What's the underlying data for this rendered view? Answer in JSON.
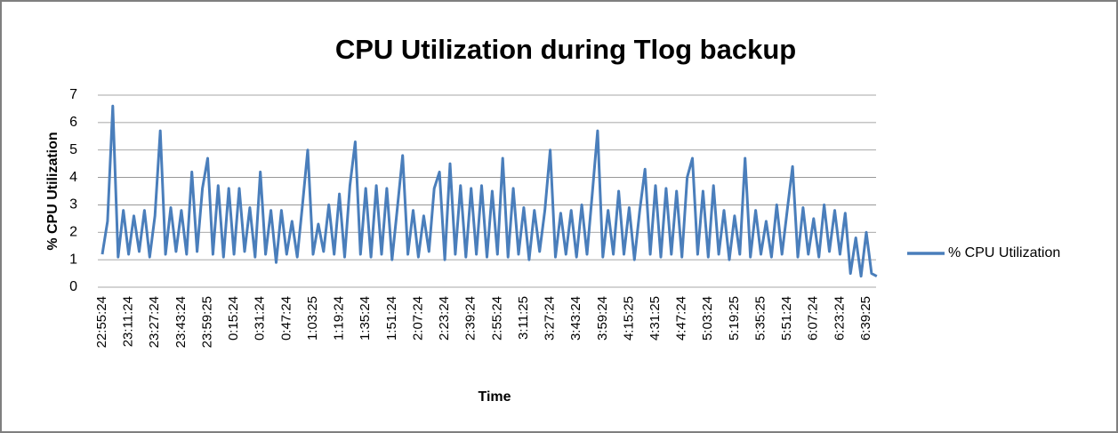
{
  "chart_data": {
    "type": "line",
    "title": "CPU Utilization during Tlog backup",
    "xlabel": "Time",
    "ylabel": "% CPU Utilization",
    "categories": [
      "22:55:24",
      null,
      null,
      null,
      null,
      "23:11:24",
      null,
      null,
      null,
      null,
      "23:27:24",
      null,
      null,
      null,
      null,
      "23:43:24",
      null,
      null,
      null,
      null,
      "23:59:25",
      null,
      null,
      null,
      null,
      "0:15:24",
      null,
      null,
      null,
      null,
      "0:31:24",
      null,
      null,
      null,
      null,
      "0:47:24",
      null,
      null,
      null,
      null,
      "1:03:25",
      null,
      null,
      null,
      null,
      "1:19:24",
      null,
      null,
      null,
      null,
      "1:35:24",
      null,
      null,
      null,
      null,
      "1:51:24",
      null,
      null,
      null,
      null,
      "2:07:24",
      null,
      null,
      null,
      null,
      "2:23:24",
      null,
      null,
      null,
      null,
      "2:39:24",
      null,
      null,
      null,
      null,
      "2:55:24",
      null,
      null,
      null,
      null,
      "3:11:25",
      null,
      null,
      null,
      null,
      "3:27:24",
      null,
      null,
      null,
      null,
      "3:43:24",
      null,
      null,
      null,
      null,
      "3:59:24",
      null,
      null,
      null,
      null,
      "4:15:25",
      null,
      null,
      null,
      null,
      "4:31:25",
      null,
      null,
      null,
      null,
      "4:47:24",
      null,
      null,
      null,
      null,
      "5:03:24",
      null,
      null,
      null,
      null,
      "5:19:25",
      null,
      null,
      null,
      null,
      "5:35:25",
      null,
      null,
      null,
      null,
      "5:51:24",
      null,
      null,
      null,
      null,
      "6:07:24",
      null,
      null,
      null,
      null,
      "6:23:24",
      null,
      null,
      null,
      null,
      "6:39:25",
      null,
      null
    ],
    "series": [
      {
        "name": "% CPU Utilization",
        "color": "#4a7ebb",
        "values": [
          1.2,
          2.4,
          6.6,
          1.1,
          2.8,
          1.2,
          2.6,
          1.3,
          2.8,
          1.1,
          2.6,
          5.7,
          1.2,
          2.9,
          1.3,
          2.8,
          1.2,
          4.2,
          1.3,
          3.6,
          4.7,
          1.2,
          3.7,
          1.1,
          3.6,
          1.2,
          3.6,
          1.3,
          2.9,
          1.1,
          4.2,
          1.2,
          2.8,
          0.9,
          2.8,
          1.2,
          2.4,
          1.1,
          3.0,
          5.0,
          1.2,
          2.3,
          1.3,
          3.0,
          1.2,
          3.4,
          1.1,
          3.7,
          5.3,
          1.2,
          3.6,
          1.1,
          3.7,
          1.2,
          3.6,
          1.0,
          2.9,
          4.8,
          1.2,
          2.8,
          1.1,
          2.6,
          1.3,
          3.6,
          4.2,
          1.0,
          4.5,
          1.2,
          3.7,
          1.1,
          3.6,
          1.2,
          3.7,
          1.1,
          3.5,
          1.2,
          4.7,
          1.1,
          3.6,
          1.2,
          2.9,
          1.0,
          2.8,
          1.3,
          2.8,
          5.0,
          1.1,
          2.7,
          1.2,
          2.8,
          1.1,
          3.0,
          1.2,
          3.4,
          5.7,
          1.1,
          2.8,
          1.2,
          3.5,
          1.2,
          2.9,
          1.0,
          2.8,
          4.3,
          1.2,
          3.7,
          1.1,
          3.6,
          1.2,
          3.5,
          1.1,
          4.0,
          4.7,
          1.2,
          3.5,
          1.1,
          3.7,
          1.2,
          2.8,
          1.0,
          2.6,
          1.2,
          4.7,
          1.1,
          2.8,
          1.2,
          2.4,
          1.1,
          3.0,
          1.2,
          2.8,
          4.4,
          1.1,
          2.9,
          1.2,
          2.5,
          1.1,
          3.0,
          1.3,
          2.8,
          1.2,
          2.7,
          0.5,
          1.8,
          0.4,
          2.0,
          0.5,
          0.4
        ]
      }
    ],
    "ylim": [
      0,
      7
    ],
    "yticks": [
      0,
      1,
      2,
      3,
      4,
      5,
      6,
      7
    ],
    "grid": true,
    "legend": "right"
  }
}
